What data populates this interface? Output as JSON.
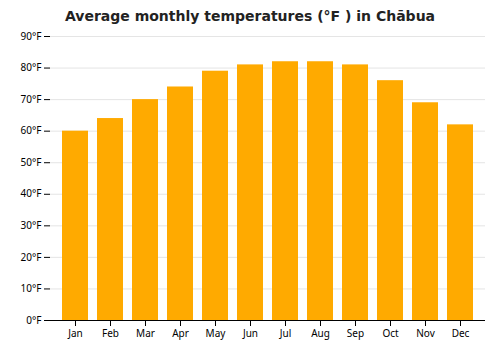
{
  "chart_data": {
    "type": "bar",
    "title": "Average monthly temperatures (°F ) in Chābua",
    "categories": [
      "Jan",
      "Feb",
      "Mar",
      "Apr",
      "May",
      "Jun",
      "Jul",
      "Aug",
      "Sep",
      "Oct",
      "Nov",
      "Dec"
    ],
    "values": [
      60,
      64,
      70,
      74,
      79,
      81,
      82,
      82,
      81,
      76,
      69,
      62
    ],
    "color": "#FFAA00",
    "ylim": [
      0,
      90
    ],
    "yticks": [
      {
        "value": 0,
        "label": "0°F"
      },
      {
        "value": 10,
        "label": "10°F"
      },
      {
        "value": 20,
        "label": "20°F"
      },
      {
        "value": 30,
        "label": "30°F"
      },
      {
        "value": 40,
        "label": "40°F"
      },
      {
        "value": 50,
        "label": "50°F"
      },
      {
        "value": 60,
        "label": "60°F"
      },
      {
        "value": 70,
        "label": "70°F"
      },
      {
        "value": 80,
        "label": "80°F"
      },
      {
        "value": 90,
        "label": "90°F"
      }
    ],
    "grid": true
  }
}
